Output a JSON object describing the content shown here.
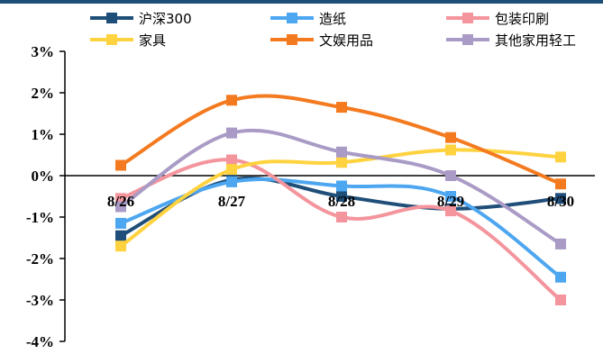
{
  "colors": {
    "top_bar": "#1f4e79",
    "axis": "#000000"
  },
  "chart_data": {
    "type": "line",
    "title": "",
    "xlabel": "",
    "ylabel": "",
    "categories": [
      "8/26",
      "8/27",
      "8/28",
      "8/29",
      "8/30"
    ],
    "ylim": [
      -4,
      3
    ],
    "y_ticks": [
      3,
      2,
      1,
      0,
      -1,
      -2,
      -3,
      -4
    ],
    "y_tick_labels": [
      "3%",
      "2%",
      "1%",
      "0%",
      "-1%",
      "-2%",
      "-3%",
      "-4%"
    ],
    "legend_position": "top",
    "series": [
      {
        "name": "沪深300",
        "color": "#1f4e79",
        "values": [
          -1.45,
          -0.1,
          -0.5,
          -0.8,
          -0.55
        ]
      },
      {
        "name": "造纸",
        "color": "#4da6f0",
        "values": [
          -1.15,
          -0.15,
          -0.25,
          -0.5,
          -2.45
        ]
      },
      {
        "name": "包装印刷",
        "color": "#f4949c",
        "values": [
          -0.55,
          0.38,
          -1.0,
          -0.85,
          -3.0
        ]
      },
      {
        "name": "家具",
        "color": "#ffd23f",
        "values": [
          -1.7,
          0.15,
          0.32,
          0.62,
          0.45
        ]
      },
      {
        "name": "文娱用品",
        "color": "#f47a20",
        "values": [
          0.25,
          1.82,
          1.65,
          0.92,
          -0.2
        ]
      },
      {
        "name": "其他家用轻工",
        "color": "#a99bc6",
        "values": [
          -0.75,
          1.03,
          0.57,
          0.0,
          -1.65
        ]
      }
    ]
  }
}
